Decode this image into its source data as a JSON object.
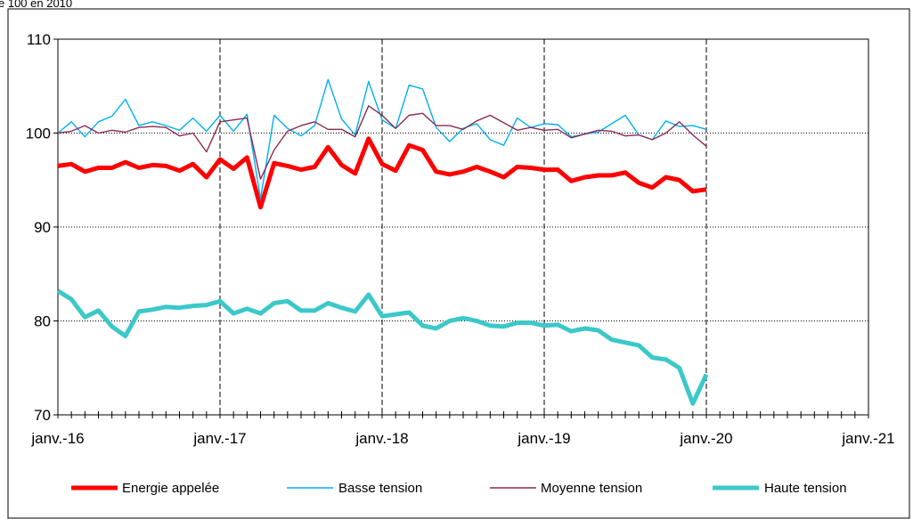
{
  "header": {
    "subtitle": "e 100 en 2010"
  },
  "chart_data": {
    "type": "line",
    "subtitle": "e 100 en 2010",
    "ylim": [
      70,
      110
    ],
    "y_ticks": [
      70,
      80,
      90,
      100,
      110
    ],
    "x_ticks": [
      "janv.-16",
      "janv.-17",
      "janv.-18",
      "janv.-19",
      "janv.-20",
      "janv.-21"
    ],
    "x_range_months": [
      0,
      60
    ],
    "grid": true,
    "legend_position": "bottom",
    "series": [
      {
        "name": "Energie appelée",
        "color": "#ff0000",
        "values": [
          96.5,
          96.7,
          95.9,
          96.3,
          96.3,
          96.9,
          96.3,
          96.6,
          96.5,
          96.0,
          96.7,
          95.3,
          97.2,
          96.2,
          97.4,
          92.1,
          96.8,
          96.5,
          96.1,
          96.4,
          98.5,
          96.6,
          95.7,
          99.4,
          96.7,
          96.0,
          98.7,
          98.2,
          95.9,
          95.6,
          95.9,
          96.4,
          95.9,
          95.3,
          96.4,
          96.3,
          96.1,
          96.1,
          94.9,
          95.3,
          95.5,
          95.5,
          95.8,
          94.7,
          94.2,
          95.3,
          95.0,
          93.8,
          94.0
        ]
      },
      {
        "name": "Basse tension",
        "color": "#00b0f0",
        "values": [
          100.0,
          101.2,
          99.6,
          101.2,
          101.8,
          103.6,
          100.8,
          101.2,
          100.8,
          100.3,
          101.6,
          100.2,
          101.9,
          100.2,
          102.0,
          93.0,
          101.9,
          100.5,
          99.7,
          100.8,
          105.7,
          101.5,
          99.8,
          105.5,
          101.4,
          100.5,
          105.1,
          104.7,
          100.6,
          99.1,
          100.5,
          101.0,
          99.3,
          98.7,
          101.6,
          100.6,
          101.0,
          100.9,
          99.6,
          99.9,
          100.1,
          101.0,
          101.9,
          99.8,
          99.3,
          101.3,
          100.7,
          100.8,
          100.4
        ]
      },
      {
        "name": "Moyenne tension",
        "color": "#8b2a54",
        "values": [
          100.0,
          100.2,
          100.8,
          100.0,
          100.3,
          100.1,
          100.6,
          100.7,
          100.6,
          99.7,
          100.0,
          98.0,
          101.2,
          101.4,
          101.6,
          95.1,
          98.2,
          100.2,
          100.8,
          101.2,
          100.4,
          100.4,
          99.6,
          102.9,
          101.9,
          100.5,
          101.9,
          102.1,
          100.8,
          100.8,
          100.4,
          101.3,
          101.9,
          101.1,
          100.3,
          100.6,
          100.3,
          100.4,
          99.5,
          99.9,
          100.3,
          100.2,
          99.7,
          99.8,
          99.3,
          100.0,
          101.2,
          99.8,
          98.6
        ]
      },
      {
        "name": "Haute tension",
        "color": "#3cc8c8",
        "values": [
          83.2,
          82.3,
          80.4,
          81.1,
          79.4,
          78.4,
          81.0,
          81.2,
          81.5,
          81.4,
          81.6,
          81.7,
          82.1,
          80.8,
          81.3,
          80.8,
          81.9,
          82.1,
          81.1,
          81.1,
          81.9,
          81.4,
          81.0,
          82.8,
          80.5,
          80.7,
          80.9,
          79.5,
          79.2,
          80.0,
          80.3,
          80.0,
          79.5,
          79.4,
          79.8,
          79.8,
          79.5,
          79.6,
          78.9,
          79.2,
          79.0,
          78.0,
          77.7,
          77.4,
          76.1,
          75.9,
          75.0,
          71.2,
          74.3
        ]
      }
    ]
  }
}
